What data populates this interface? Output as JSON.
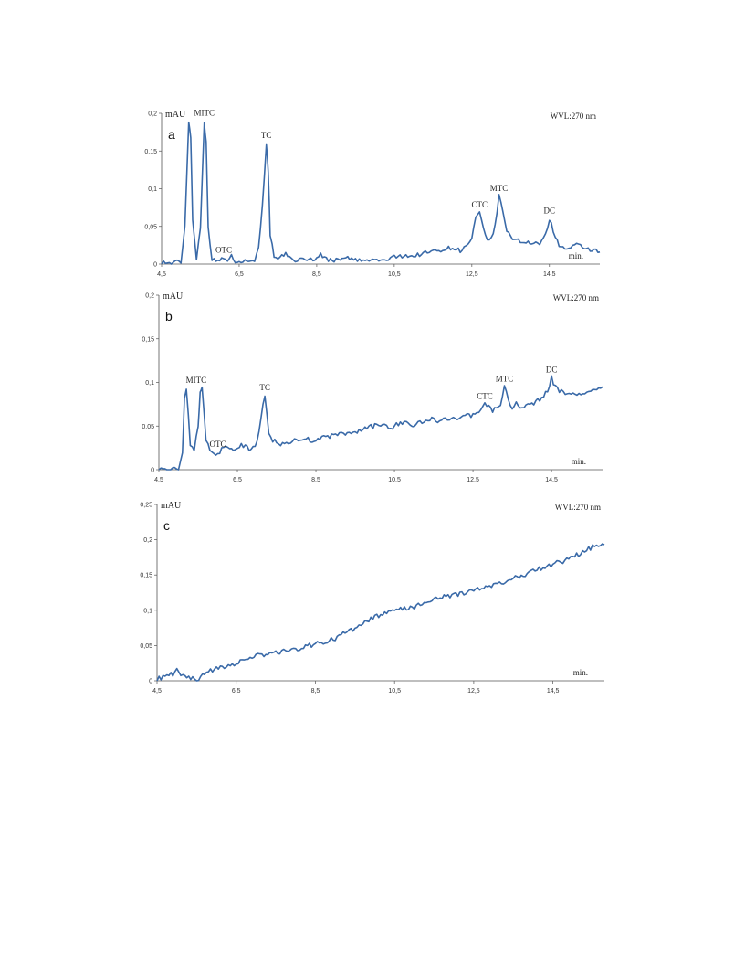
{
  "chart_data": [
    {
      "type": "line",
      "panel_label": "a",
      "ylabel": "mAU",
      "xlabel": "min.",
      "annotation": "WVL:270 nm",
      "xlim": [
        4.5,
        15.8
      ],
      "ylim": [
        0,
        0.2
      ],
      "x_ticks": [
        4.5,
        6.5,
        8.5,
        10.5,
        12.5,
        14.5
      ],
      "x_tick_labels": [
        "4,5",
        "6,5",
        "8,5",
        "10,5",
        "12,5",
        "14,5"
      ],
      "y_ticks": [
        0,
        0.05,
        0.1,
        0.15,
        0.2
      ],
      "y_tick_labels": [
        "0",
        "0,05",
        "0,1",
        "0,15",
        "0,2"
      ],
      "color": "#3a6aa8",
      "peak_labels": [
        {
          "label": "MITC",
          "x": 5.6,
          "y": 0.19
        },
        {
          "label": "OTC",
          "x": 6.1,
          "y": 0.008
        },
        {
          "label": "TC",
          "x": 7.2,
          "y": 0.16
        },
        {
          "label": "CTC",
          "x": 12.7,
          "y": 0.068
        },
        {
          "label": "MTC",
          "x": 13.2,
          "y": 0.09
        },
        {
          "label": "DC",
          "x": 14.5,
          "y": 0.06
        }
      ],
      "series": [
        {
          "x": [
            4.5,
            4.6,
            4.7,
            4.8,
            4.9,
            5.0,
            5.1,
            5.2,
            5.25,
            5.3,
            5.4,
            5.5,
            5.6,
            5.65,
            5.7,
            5.8,
            5.9,
            6.0,
            6.1,
            6.2,
            6.3,
            6.4,
            6.5,
            6.6,
            6.7,
            6.8,
            6.9,
            7.0,
            7.1,
            7.2,
            7.25,
            7.3,
            7.4,
            7.5,
            7.6,
            7.7,
            7.8,
            7.9,
            8.0,
            8.2,
            8.4,
            8.6,
            8.8,
            9.0,
            9.2,
            9.4,
            9.6,
            9.8,
            10.0,
            10.2,
            10.4,
            10.6,
            10.8,
            11.0,
            11.2,
            11.4,
            11.6,
            11.8,
            12.0,
            12.2,
            12.4,
            12.5,
            12.6,
            12.7,
            12.8,
            12.9,
            13.0,
            13.1,
            13.2,
            13.3,
            13.4,
            13.5,
            13.6,
            13.8,
            14.0,
            14.2,
            14.3,
            14.4,
            14.5,
            14.6,
            14.7,
            14.8,
            15.0,
            15.2,
            15.4,
            15.6,
            15.8
          ],
          "values": [
            0.003,
            0.002,
            0.001,
            0.002,
            0.003,
            0.003,
            0.05,
            0.19,
            0.17,
            0.06,
            0.006,
            0.05,
            0.19,
            0.16,
            0.05,
            0.006,
            0.004,
            0.005,
            0.008,
            0.006,
            0.01,
            0.004,
            0.005,
            0.004,
            0.004,
            0.005,
            0.006,
            0.02,
            0.08,
            0.16,
            0.12,
            0.04,
            0.008,
            0.005,
            0.01,
            0.015,
            0.008,
            0.006,
            0.005,
            0.007,
            0.006,
            0.012,
            0.006,
            0.005,
            0.01,
            0.006,
            0.005,
            0.004,
            0.006,
            0.004,
            0.008,
            0.01,
            0.012,
            0.01,
            0.014,
            0.016,
            0.018,
            0.02,
            0.022,
            0.018,
            0.025,
            0.035,
            0.06,
            0.068,
            0.045,
            0.03,
            0.035,
            0.05,
            0.09,
            0.07,
            0.045,
            0.035,
            0.034,
            0.03,
            0.028,
            0.026,
            0.03,
            0.04,
            0.06,
            0.045,
            0.03,
            0.022,
            0.02,
            0.025,
            0.022,
            0.018,
            0.016
          ]
        }
      ]
    },
    {
      "type": "line",
      "panel_label": "b",
      "ylabel": "mAU",
      "xlabel": "min.",
      "annotation": "WVL:270 nm",
      "xlim": [
        4.5,
        15.8
      ],
      "ylim": [
        0,
        0.2
      ],
      "x_ticks": [
        4.5,
        6.5,
        8.5,
        10.5,
        12.5,
        14.5
      ],
      "x_tick_labels": [
        "4,5",
        "6,5",
        "8,5",
        "10,5",
        "12,5",
        "14,5"
      ],
      "y_ticks": [
        0,
        0.05,
        0.1,
        0.15,
        0.2
      ],
      "y_tick_labels": [
        "0",
        "0,05",
        "0,1",
        "0,15",
        "0,2"
      ],
      "color": "#3a6aa8",
      "peak_labels": [
        {
          "label": "MITC",
          "x": 5.45,
          "y": 0.093
        },
        {
          "label": "OTC",
          "x": 6.0,
          "y": 0.02
        },
        {
          "label": "TC",
          "x": 7.2,
          "y": 0.085
        },
        {
          "label": "CTC",
          "x": 12.8,
          "y": 0.075
        },
        {
          "label": "MTC",
          "x": 13.3,
          "y": 0.095
        },
        {
          "label": "DC",
          "x": 14.5,
          "y": 0.105
        }
      ],
      "series": [
        {
          "x": [
            4.5,
            4.6,
            4.7,
            4.8,
            4.9,
            5.0,
            5.1,
            5.15,
            5.2,
            5.3,
            5.4,
            5.5,
            5.55,
            5.6,
            5.7,
            5.8,
            5.9,
            6.0,
            6.2,
            6.4,
            6.6,
            6.8,
            7.0,
            7.1,
            7.2,
            7.3,
            7.4,
            7.6,
            7.8,
            8.0,
            8.2,
            8.4,
            8.6,
            8.8,
            9.0,
            9.2,
            9.4,
            9.6,
            9.8,
            10.0,
            10.2,
            10.4,
            10.6,
            10.8,
            11.0,
            11.2,
            11.4,
            11.6,
            11.8,
            12.0,
            12.2,
            12.4,
            12.6,
            12.8,
            12.9,
            13.0,
            13.2,
            13.3,
            13.4,
            13.5,
            13.6,
            13.8,
            14.0,
            14.2,
            14.4,
            14.5,
            14.6,
            14.7,
            14.8,
            15.0,
            15.2,
            15.4,
            15.6,
            15.8
          ],
          "values": [
            0.0,
            0.0,
            0.0,
            0.0,
            0.0,
            0.0,
            0.02,
            0.08,
            0.09,
            0.03,
            0.022,
            0.05,
            0.09,
            0.093,
            0.035,
            0.022,
            0.018,
            0.02,
            0.025,
            0.022,
            0.028,
            0.024,
            0.03,
            0.06,
            0.085,
            0.04,
            0.034,
            0.03,
            0.032,
            0.033,
            0.035,
            0.034,
            0.036,
            0.037,
            0.04,
            0.042,
            0.04,
            0.045,
            0.048,
            0.05,
            0.052,
            0.048,
            0.053,
            0.055,
            0.05,
            0.055,
            0.058,
            0.056,
            0.06,
            0.058,
            0.06,
            0.062,
            0.065,
            0.075,
            0.072,
            0.068,
            0.075,
            0.095,
            0.08,
            0.07,
            0.075,
            0.072,
            0.075,
            0.08,
            0.09,
            0.105,
            0.095,
            0.09,
            0.088,
            0.088,
            0.085,
            0.09,
            0.092,
            0.095
          ]
        }
      ]
    },
    {
      "type": "line",
      "panel_label": "c",
      "ylabel": "mAU",
      "xlabel": "min.",
      "annotation": "WVL:270 nm",
      "xlim": [
        4.5,
        15.8
      ],
      "ylim": [
        0,
        0.25
      ],
      "x_ticks": [
        4.5,
        6.5,
        8.5,
        10.5,
        12.5,
        14.5
      ],
      "x_tick_labels": [
        "4,5",
        "6,5",
        "8,5",
        "10,5",
        "12,5",
        "14,5"
      ],
      "y_ticks": [
        0,
        0.05,
        0.1,
        0.15,
        0.2,
        0.25
      ],
      "y_tick_labels": [
        "0",
        "0,05",
        "0,1",
        "0,15",
        "0,2",
        "0,25"
      ],
      "color": "#3a6aa8",
      "peak_labels": [],
      "series": [
        {
          "x": [
            4.5,
            4.7,
            4.9,
            5.0,
            5.1,
            5.3,
            5.5,
            5.6,
            5.8,
            6.0,
            6.5,
            7.0,
            7.5,
            8.0,
            8.5,
            9.0,
            9.5,
            10.0,
            10.5,
            11.0,
            11.5,
            12.0,
            12.5,
            13.0,
            13.5,
            14.0,
            14.5,
            15.0,
            15.5,
            15.8
          ],
          "values": [
            0.003,
            0.005,
            0.01,
            0.014,
            0.01,
            0.005,
            0.0,
            0.005,
            0.012,
            0.018,
            0.025,
            0.035,
            0.04,
            0.045,
            0.052,
            0.06,
            0.075,
            0.09,
            0.1,
            0.105,
            0.115,
            0.122,
            0.128,
            0.135,
            0.145,
            0.155,
            0.165,
            0.175,
            0.19,
            0.193
          ]
        }
      ]
    }
  ]
}
